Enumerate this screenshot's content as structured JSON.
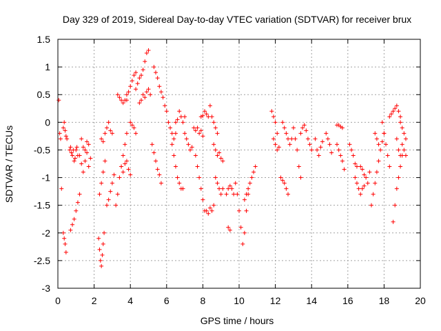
{
  "chart_data": {
    "type": "scatter",
    "title": "Day 329 of 2019, Sidereal Day-to-day VTEC variation (SDTVAR) for receiver brux",
    "xlabel": "GPS time / hours",
    "ylabel": "SDTVAR / TECUs",
    "xlim": [
      0,
      20
    ],
    "ylim": [
      -3,
      1.5
    ],
    "xticks": [
      0,
      2,
      4,
      6,
      8,
      10,
      12,
      14,
      16,
      18,
      20
    ],
    "yticks": [
      1.5,
      1,
      0.5,
      0,
      -0.5,
      -1,
      -1.5,
      -2,
      -2.5,
      -3
    ],
    "xtick_labels": [
      "0",
      "2",
      "4",
      "6",
      "8",
      "10",
      "12",
      "14",
      "16",
      "18",
      "20"
    ],
    "ytick_labels": [
      "1.5",
      "1",
      "0.5",
      "0",
      "-0.5",
      "-1",
      "-1.5",
      "-2",
      "-2.5",
      "-3"
    ],
    "grid": true,
    "marker": "+",
    "color": "#ff0000",
    "series": [
      {
        "name": "s1",
        "x": [
          0.05,
          0.1,
          0.15,
          0.2
        ],
        "y": [
          0.4,
          -0.2,
          -0.3,
          -1.2
        ]
      },
      {
        "name": "s2",
        "x": [
          0.3,
          0.35,
          0.4,
          0.45,
          0.5
        ],
        "y": [
          -0.1,
          0.0,
          -0.15,
          -0.25,
          -0.3
        ]
      },
      {
        "name": "s3",
        "x": [
          0.3,
          0.35,
          0.4,
          0.45
        ],
        "y": [
          -2.0,
          -2.1,
          -2.2,
          -2.35
        ]
      },
      {
        "name": "s4",
        "x": [
          0.65,
          0.7,
          0.75,
          0.8,
          0.85,
          0.9,
          0.95,
          1.0,
          1.05,
          1.1
        ],
        "y": [
          -0.5,
          -0.45,
          -0.55,
          -0.6,
          -0.5,
          -0.7,
          -0.65,
          -0.5,
          -0.45,
          -0.6
        ]
      },
      {
        "name": "s5",
        "x": [
          0.7,
          0.8,
          0.9,
          1.0,
          1.1,
          1.2
        ],
        "y": [
          -1.95,
          -1.85,
          -1.75,
          -1.6,
          -1.45,
          -1.3
        ]
      },
      {
        "name": "s6",
        "x": [
          1.2,
          1.3,
          1.4,
          1.5,
          1.6,
          1.7,
          1.8
        ],
        "y": [
          -0.6,
          -0.75,
          -0.9,
          -0.7,
          -0.55,
          -0.8,
          -0.65
        ]
      },
      {
        "name": "s7",
        "x": [
          1.3,
          1.4,
          1.5,
          1.6,
          1.7
        ],
        "y": [
          -0.3,
          -0.45,
          -0.5,
          -0.35,
          -0.4
        ]
      },
      {
        "name": "s8",
        "x": [
          2.25,
          2.3,
          2.35,
          2.4,
          2.45,
          2.5,
          2.55
        ],
        "y": [
          -2.1,
          -2.3,
          -2.5,
          -2.6,
          -2.4,
          -2.2,
          -2.0
        ]
      },
      {
        "name": "s9",
        "x": [
          2.3,
          2.4,
          2.5,
          2.6
        ],
        "y": [
          -1.3,
          -1.1,
          -0.9,
          -0.7
        ]
      },
      {
        "name": "s10",
        "x": [
          2.4,
          2.5,
          2.6,
          2.7,
          2.8,
          2.9,
          3.0
        ],
        "y": [
          -0.3,
          -0.35,
          -0.2,
          -0.1,
          0.0,
          -0.15,
          -0.2
        ]
      },
      {
        "name": "s11",
        "x": [
          2.7,
          2.8,
          2.9,
          3.0,
          3.1
        ],
        "y": [
          -1.5,
          -1.4,
          -1.25,
          -1.1,
          -0.95
        ]
      },
      {
        "name": "s12",
        "x": [
          3.2,
          3.3,
          3.4,
          3.5,
          3.6,
          3.7,
          3.8
        ],
        "y": [
          -1.5,
          -1.3,
          -1.0,
          -0.8,
          -0.6,
          -0.4,
          -0.2
        ]
      },
      {
        "name": "s13",
        "x": [
          3.3,
          3.4,
          3.5,
          3.6,
          3.7,
          3.8
        ],
        "y": [
          0.5,
          0.45,
          0.4,
          0.35,
          0.4,
          0.5
        ]
      },
      {
        "name": "s14",
        "x": [
          3.5,
          3.6,
          3.7,
          3.8,
          3.9,
          4.0
        ],
        "y": [
          -0.8,
          -0.9,
          -0.75,
          -0.7,
          -0.85,
          -0.95
        ]
      },
      {
        "name": "s15",
        "x": [
          3.8,
          3.9,
          4.0,
          4.1,
          4.2,
          4.3
        ],
        "y": [
          0.4,
          0.55,
          0.65,
          0.75,
          0.85,
          0.9
        ]
      },
      {
        "name": "s16",
        "x": [
          4.0,
          4.1,
          4.2,
          4.3
        ],
        "y": [
          0.0,
          -0.05,
          -0.1,
          -0.2
        ]
      },
      {
        "name": "s17",
        "x": [
          4.3,
          4.4,
          4.5,
          4.6,
          4.7,
          4.8,
          4.9,
          5.0
        ],
        "y": [
          0.6,
          0.7,
          0.8,
          0.85,
          0.95,
          1.1,
          1.25,
          1.3
        ]
      },
      {
        "name": "s18",
        "x": [
          4.5,
          4.6,
          4.7,
          4.8,
          4.9,
          5.0,
          5.1
        ],
        "y": [
          0.35,
          0.4,
          0.5,
          0.45,
          0.55,
          0.6,
          0.5
        ]
      },
      {
        "name": "s19",
        "x": [
          5.3,
          5.4,
          5.5,
          5.6,
          5.7,
          5.8,
          5.9
        ],
        "y": [
          1.0,
          0.9,
          0.8,
          0.65,
          0.55,
          0.45,
          0.3
        ]
      },
      {
        "name": "s20",
        "x": [
          5.2,
          5.3,
          5.4,
          5.5,
          5.6,
          5.7
        ],
        "y": [
          -0.4,
          -0.55,
          -0.7,
          -0.85,
          -0.95,
          -1.1
        ]
      },
      {
        "name": "s21",
        "x": [
          6.0,
          6.1,
          6.2,
          6.3,
          6.4,
          6.5
        ],
        "y": [
          0.2,
          0.0,
          -0.1,
          -0.2,
          -0.3,
          -0.2
        ]
      },
      {
        "name": "s22",
        "x": [
          6.3,
          6.4,
          6.5,
          6.6,
          6.7,
          6.8,
          6.9
        ],
        "y": [
          -0.4,
          -0.6,
          -0.8,
          -1.0,
          -1.1,
          -1.2,
          -1.2
        ]
      },
      {
        "name": "s23",
        "x": [
          6.5,
          6.6,
          6.7,
          6.8,
          6.9,
          7.0
        ],
        "y": [
          0.0,
          0.05,
          0.2,
          0.1,
          0.0,
          0.1
        ]
      },
      {
        "name": "s24",
        "x": [
          7.0,
          7.1,
          7.2,
          7.3,
          7.4
        ],
        "y": [
          -0.2,
          -0.3,
          -0.4,
          -0.5,
          -0.45
        ]
      },
      {
        "name": "s25",
        "x": [
          7.5,
          7.6,
          7.7,
          7.8,
          7.9,
          8.0
        ],
        "y": [
          -0.1,
          -0.15,
          -0.1,
          -0.2,
          -0.15,
          -0.25
        ]
      },
      {
        "name": "s26",
        "x": [
          7.6,
          7.7,
          7.8,
          7.9,
          8.0,
          8.1
        ],
        "y": [
          -0.6,
          -0.8,
          -1.0,
          -1.2,
          -1.4,
          -1.6
        ]
      },
      {
        "name": "s27",
        "x": [
          7.9,
          8.0,
          8.1,
          8.2,
          8.3
        ],
        "y": [
          0.1,
          0.12,
          0.2,
          0.15,
          0.1
        ]
      },
      {
        "name": "s28",
        "x": [
          8.2,
          8.3,
          8.4,
          8.5,
          8.6
        ],
        "y": [
          -1.6,
          -1.65,
          -1.55,
          -1.6,
          -1.5
        ]
      },
      {
        "name": "s29",
        "x": [
          8.4,
          8.5,
          8.6,
          8.7,
          8.8
        ],
        "y": [
          0.3,
          0.1,
          0.0,
          -0.1,
          -0.2
        ]
      },
      {
        "name": "s30",
        "x": [
          8.6,
          8.7,
          8.8,
          8.9,
          9.0,
          9.1
        ],
        "y": [
          -0.4,
          -0.5,
          -0.6,
          -0.55,
          -0.65,
          -0.7
        ]
      },
      {
        "name": "s31",
        "x": [
          8.7,
          8.8,
          8.9,
          9.0,
          9.1
        ],
        "y": [
          -1.0,
          -1.1,
          -1.2,
          -1.3,
          -1.2
        ]
      },
      {
        "name": "s32",
        "x": [
          9.3,
          9.4,
          9.5,
          9.6,
          9.7,
          9.8
        ],
        "y": [
          -1.3,
          -1.2,
          -1.15,
          -1.2,
          -1.3,
          -1.1
        ]
      },
      {
        "name": "s33",
        "x": [
          9.4,
          9.5
        ],
        "y": [
          -1.9,
          -1.95
        ]
      },
      {
        "name": "s34",
        "x": [
          9.9,
          10.0,
          10.1,
          10.2,
          10.3,
          10.4,
          10.5
        ],
        "y": [
          -1.3,
          -1.6,
          -1.9,
          -2.2,
          -2.0,
          -1.6,
          -1.3
        ]
      },
      {
        "name": "s35",
        "x": [
          10.3,
          10.4,
          10.5,
          10.6,
          10.7,
          10.8,
          10.9
        ],
        "y": [
          -1.4,
          -1.3,
          -1.2,
          -1.1,
          -1.0,
          -0.9,
          -0.8
        ]
      },
      {
        "name": "s36",
        "x": [
          11.8,
          11.9,
          12.0,
          12.1
        ],
        "y": [
          0.2,
          0.1,
          0.0,
          -0.2
        ]
      },
      {
        "name": "s37",
        "x": [
          11.9,
          12.0,
          12.1,
          12.2
        ],
        "y": [
          -0.3,
          -0.4,
          -0.5,
          -0.45
        ]
      },
      {
        "name": "s38",
        "x": [
          12.3,
          12.4,
          12.5,
          12.6,
          12.7
        ],
        "y": [
          -1.0,
          -1.05,
          -1.1,
          -1.2,
          -1.3
        ]
      },
      {
        "name": "s39",
        "x": [
          12.4,
          12.5,
          12.6,
          12.7,
          12.8,
          12.9
        ],
        "y": [
          0.0,
          -0.1,
          -0.2,
          -0.3,
          -0.4,
          -0.3
        ]
      },
      {
        "name": "s40",
        "x": [
          13.0,
          13.1,
          13.2,
          13.3,
          13.4
        ],
        "y": [
          -0.1,
          -0.3,
          -0.5,
          -0.8,
          -1.0
        ]
      },
      {
        "name": "s41",
        "x": [
          13.4,
          13.5,
          13.6,
          13.7,
          13.8,
          13.9,
          14.0
        ],
        "y": [
          -0.2,
          -0.1,
          -0.05,
          -0.15,
          -0.3,
          -0.4,
          -0.5
        ]
      },
      {
        "name": "s42",
        "x": [
          14.2,
          14.3,
          14.4,
          14.5,
          14.6
        ],
        "y": [
          -0.3,
          -0.5,
          -0.6,
          -0.45,
          -0.35
        ]
      },
      {
        "name": "s43",
        "x": [
          14.8,
          14.9,
          15.0,
          15.1
        ],
        "y": [
          -0.2,
          -0.3,
          -0.4,
          -0.55
        ]
      },
      {
        "name": "s44",
        "x": [
          15.4,
          15.5,
          15.6,
          15.7
        ],
        "y": [
          -0.05,
          -0.05,
          -0.08,
          -0.1
        ]
      },
      {
        "name": "s45",
        "x": [
          15.4,
          15.5,
          15.6,
          15.7,
          15.8
        ],
        "y": [
          -0.4,
          -0.5,
          -0.6,
          -0.7,
          -0.85
        ]
      },
      {
        "name": "s46",
        "x": [
          16.1,
          16.2,
          16.3,
          16.4,
          16.5
        ],
        "y": [
          -0.4,
          -0.5,
          -0.6,
          -0.75,
          -0.8
        ]
      },
      {
        "name": "s47",
        "x": [
          16.4,
          16.5,
          16.6,
          16.7,
          16.8,
          16.9
        ],
        "y": [
          -1.0,
          -1.1,
          -1.2,
          -1.3,
          -1.2,
          -1.15
        ]
      },
      {
        "name": "s48",
        "x": [
          16.7,
          16.8,
          16.9,
          17.0,
          17.1,
          17.2
        ],
        "y": [
          -0.8,
          -0.85,
          -0.95,
          -1.0,
          -1.1,
          -0.9
        ]
      },
      {
        "name": "s49",
        "x": [
          17.3,
          17.4,
          17.5,
          17.6,
          17.7
        ],
        "y": [
          -1.5,
          -1.3,
          -1.1,
          -0.9,
          -0.7
        ]
      },
      {
        "name": "s50",
        "x": [
          17.5,
          17.6,
          17.7,
          17.8,
          17.9,
          18.0
        ],
        "y": [
          -0.2,
          -0.3,
          -0.4,
          -0.5,
          -0.35,
          -0.2
        ]
      },
      {
        "name": "s51",
        "x": [
          17.9,
          18.0,
          18.1,
          18.2,
          18.3
        ],
        "y": [
          0.0,
          -0.2,
          -0.4,
          -0.6,
          -0.8
        ]
      },
      {
        "name": "s52",
        "x": [
          18.3,
          18.4,
          18.5,
          18.6,
          18.7,
          18.8,
          18.9
        ],
        "y": [
          0.1,
          0.15,
          0.2,
          0.25,
          0.3,
          0.2,
          0.1
        ]
      },
      {
        "name": "s53",
        "x": [
          18.5,
          18.6,
          18.7,
          18.8,
          18.9,
          19.0
        ],
        "y": [
          -1.8,
          -1.5,
          -1.2,
          -1.0,
          -0.8,
          -0.6
        ]
      },
      {
        "name": "s54",
        "x": [
          18.7,
          18.8,
          18.9,
          19.0,
          19.1,
          19.2
        ],
        "y": [
          -0.3,
          -0.5,
          -0.6,
          -0.4,
          -0.5,
          -0.6
        ]
      },
      {
        "name": "s55",
        "x": [
          18.9,
          19.0,
          19.1,
          19.2
        ],
        "y": [
          0.0,
          -0.1,
          -0.2,
          -0.3
        ]
      }
    ]
  }
}
